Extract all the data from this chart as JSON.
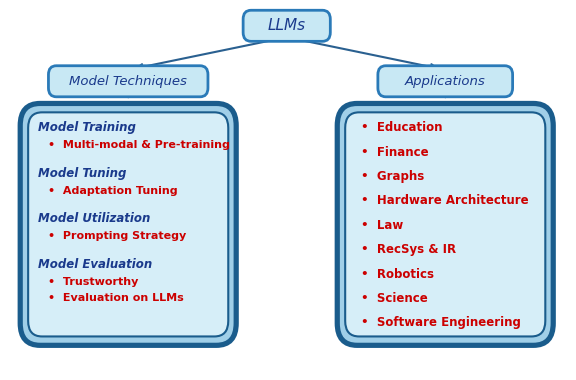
{
  "title_node": "LLMs",
  "left_branch_label": "Model Techniques",
  "right_branch_label": "Applications",
  "left_content": [
    {
      "header": "Model Training",
      "bullets": [
        "Multi-modal & Pre-training"
      ]
    },
    {
      "header": "Model Tuning",
      "bullets": [
        "Adaptation Tuning"
      ]
    },
    {
      "header": "Model Utilization",
      "bullets": [
        "Prompting Strategy"
      ]
    },
    {
      "header": "Model Evaluation",
      "bullets": [
        "Trustworthy",
        "Evaluation on LLMs"
      ]
    }
  ],
  "right_content": [
    "Education",
    "Finance",
    "Graphs",
    "Hardware Architecture",
    "Law",
    "RecSys & IR",
    "Robotics",
    "Science",
    "Software Engineering"
  ],
  "header_color": "#1a3a8c",
  "bullet_color": "#cc0000",
  "box_outer_border": "#1a5c8c",
  "box_inner_bg": "#d6eef8",
  "box_outer_bg": "#a0cfe8",
  "node_bg": "#c8e8f4",
  "node_border": "#2a7ab8",
  "arrow_color": "#2a6090",
  "figure_bg": "#ffffff"
}
